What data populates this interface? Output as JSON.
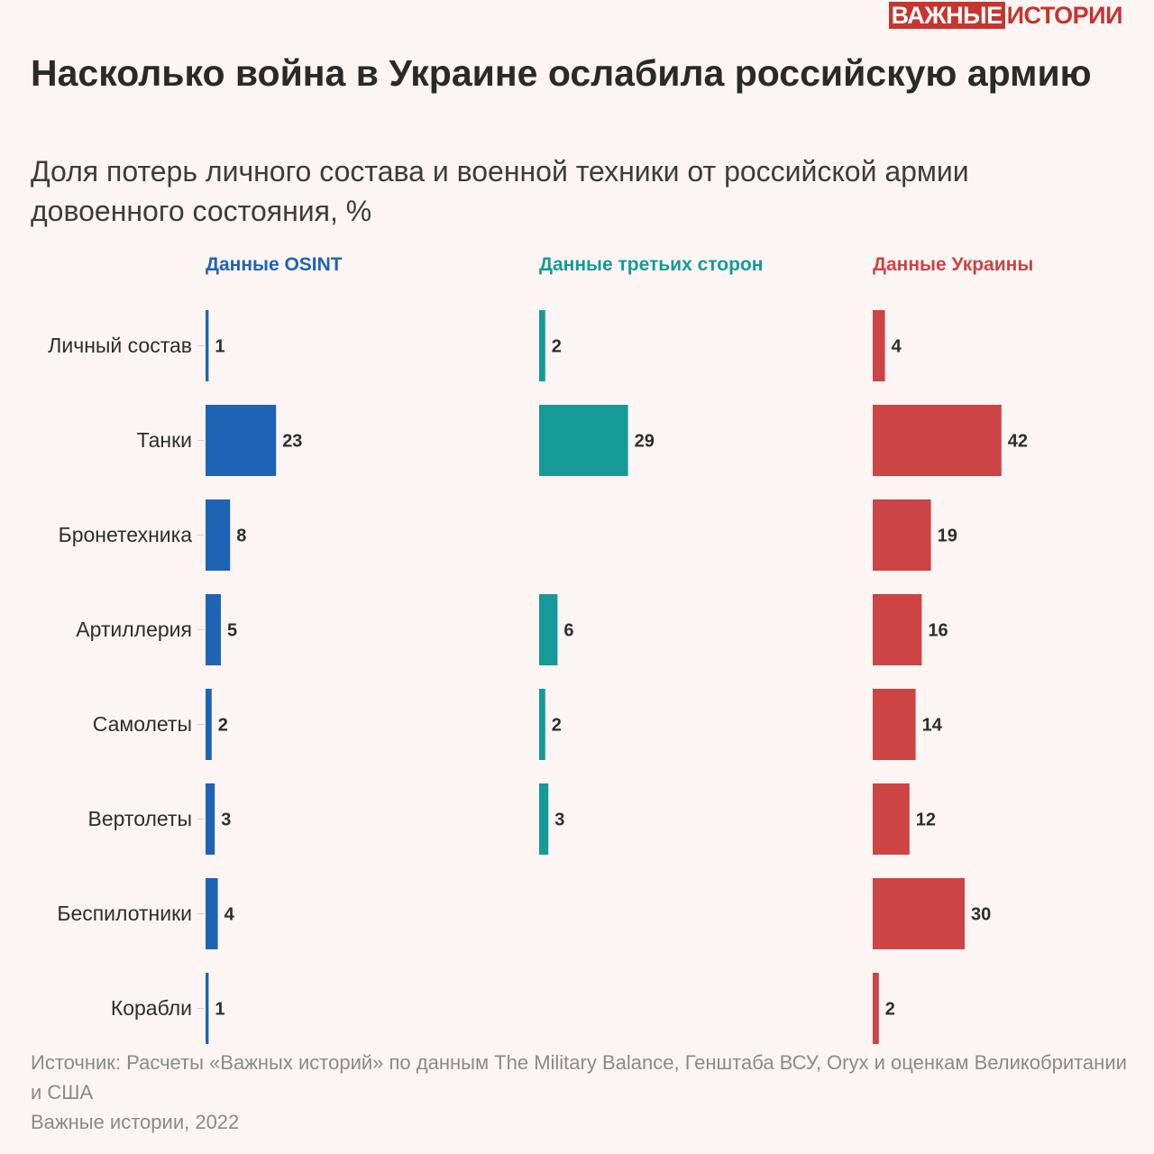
{
  "brand": {
    "part1": "ВАЖНЫЕ",
    "part2": "ИСТОРИИ",
    "color": "#c8342f"
  },
  "header": {
    "title": "Насколько война в Украине ослабила российскую армию",
    "subtitle": "Доля потерь личного состава и военной техники от российской армии довоенного состояния, %"
  },
  "chart_data": {
    "type": "bar",
    "orientation": "horizontal",
    "layout": "small-multiples",
    "categories": [
      "Личный состав",
      "Танки",
      "Бронетехника",
      "Артиллерия",
      "Самолеты",
      "Вертолеты",
      "Беспилотники",
      "Корабли"
    ],
    "series": [
      {
        "name": "Данные OSINT",
        "color": "#1f63b5",
        "values": [
          1,
          23,
          8,
          5,
          2,
          3,
          4,
          1
        ]
      },
      {
        "name": "Данные третьих сторон",
        "color": "#159a98",
        "values": [
          2,
          29,
          null,
          6,
          2,
          3,
          null,
          null
        ]
      },
      {
        "name": "Данные Украины",
        "color": "#cc4444",
        "values": [
          4,
          42,
          19,
          16,
          14,
          12,
          30,
          2
        ]
      }
    ],
    "grid": false
  },
  "footer": {
    "source": "Источник: Расчеты «Важных историй» по данным The Military Balance, Генштаба ВСУ, Oryx и оценкам Великобритании и США",
    "credit": "Важные истории, 2022"
  }
}
